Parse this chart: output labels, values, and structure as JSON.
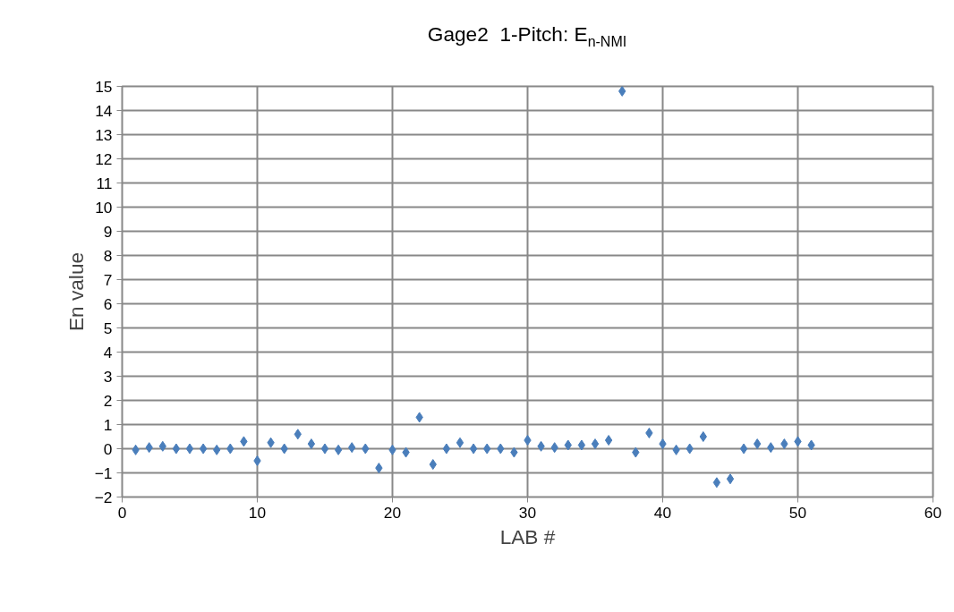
{
  "chart_data": {
    "type": "scatter",
    "title": "Gage2  1-Pitch: E$_{n-NMI}$",
    "xlabel": "LAB #",
    "ylabel": "En value",
    "x": [
      1,
      2,
      3,
      4,
      5,
      6,
      7,
      8,
      9,
      10,
      11,
      12,
      13,
      14,
      15,
      16,
      17,
      18,
      19,
      20,
      21,
      22,
      23,
      24,
      25,
      26,
      27,
      28,
      29,
      30,
      31,
      32,
      33,
      34,
      35,
      36,
      37,
      38,
      39,
      40,
      41,
      42,
      43,
      44,
      45,
      46,
      47,
      48,
      49,
      50,
      51
    ],
    "series": [
      {
        "color": "#4a7ebb",
        "values": [
          -0.05,
          0.05,
          0.1,
          0,
          0,
          0,
          -0.05,
          0,
          0.3,
          -0.5,
          0.25,
          0,
          0.6,
          0.2,
          0,
          -0.05,
          0.05,
          0,
          -0.8,
          -0.05,
          -0.15,
          1.3,
          -0.65,
          0,
          0.25,
          0,
          0,
          0,
          -0.15,
          0.35,
          0.1,
          0.05,
          0.15,
          0.15,
          0.2,
          0.35,
          14.8,
          -0.15,
          0.65,
          0.2,
          -0.05,
          0,
          0.5,
          -1.4,
          -1.25,
          0,
          0.2,
          0.05,
          0.2,
          0.3,
          0.15
        ]
      }
    ],
    "xlim": [
      0,
      60
    ],
    "xticks": [
      0,
      10,
      20,
      30,
      40,
      50,
      60
    ],
    "ylim": [
      -2,
      15
    ],
    "yticks": [
      -2,
      -1,
      0,
      1,
      2,
      3,
      4,
      5,
      6,
      7,
      8,
      9,
      10,
      11,
      12,
      13,
      14,
      15
    ],
    "grid": true,
    "marker": "diamond"
  }
}
